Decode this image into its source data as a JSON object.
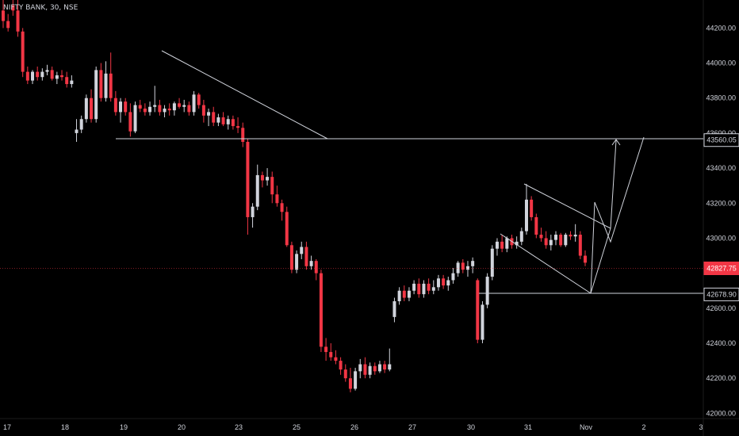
{
  "symbol_header": "NIFTY BANK, 30, NSE",
  "colors": {
    "background": "#000000",
    "up": "#d1d4dc",
    "down": "#f23645",
    "axis_text": "#d1d4dc",
    "drawing": "#d1d4dc",
    "current_price_line": "#f23645"
  },
  "chart_data": {
    "type": "candlestick",
    "title": "NIFTY BANK, 30, NSE",
    "x_tick_labels": [
      "17",
      "18",
      "19",
      "20",
      "23",
      "25",
      "26",
      "27",
      "30",
      "31",
      "Nov",
      "2",
      "3"
    ],
    "y_ticks": [
      42000,
      42200,
      42400,
      42600,
      43000,
      43200,
      43400,
      43600,
      43800,
      44000,
      44200
    ],
    "y_tick_labels": [
      "42000.00",
      "42200.00",
      "42400.00",
      "42600.00",
      "43000.00",
      "43200.00",
      "43400.00",
      "43600.00",
      "43800.00",
      "44000.00",
      "44200.00"
    ],
    "ylim": [
      41970,
      44360
    ],
    "grid": false,
    "price_labels": [
      {
        "value": 43560.05,
        "label": "43560.05",
        "style": "outline"
      },
      {
        "value": 42827.75,
        "label": "42827.75",
        "style": "current"
      },
      {
        "value": 42678.9,
        "label": "42678.90",
        "style": "outline"
      }
    ],
    "candles_ohlc": [
      [
        44300,
        44360,
        44200,
        44240
      ],
      [
        44240,
        44280,
        44180,
        44200
      ],
      [
        44330,
        44370,
        44270,
        44300
      ],
      [
        44300,
        44360,
        44150,
        44180
      ],
      [
        44180,
        44200,
        43920,
        43950
      ],
      [
        43950,
        43980,
        43880,
        43900
      ],
      [
        43900,
        43960,
        43880,
        43950
      ],
      [
        43950,
        43980,
        43900,
        43920
      ],
      [
        43920,
        43970,
        43900,
        43950
      ],
      [
        43950,
        43990,
        43930,
        43960
      ],
      [
        43960,
        43980,
        43900,
        43910
      ],
      [
        43910,
        43950,
        43880,
        43930
      ],
      [
        43930,
        43960,
        43900,
        43920
      ],
      [
        43920,
        43950,
        43860,
        43880
      ],
      [
        43880,
        43930,
        43860,
        43900
      ],
      [
        43600,
        43680,
        43550,
        43620
      ],
      [
        43620,
        43700,
        43600,
        43680
      ],
      [
        43680,
        43820,
        43660,
        43800
      ],
      [
        43800,
        43850,
        43660,
        43680
      ],
      [
        43680,
        43980,
        43660,
        43960
      ],
      [
        43960,
        44000,
        43780,
        43800
      ],
      [
        43800,
        44010,
        43780,
        43940
      ],
      [
        43940,
        44060,
        43780,
        43800
      ],
      [
        43800,
        43840,
        43700,
        43720
      ],
      [
        43720,
        43800,
        43660,
        43780
      ],
      [
        43780,
        43800,
        43700,
        43720
      ],
      [
        43720,
        43770,
        43580,
        43610
      ],
      [
        43610,
        43780,
        43600,
        43760
      ],
      [
        43760,
        43790,
        43720,
        43740
      ],
      [
        43740,
        43770,
        43700,
        43720
      ],
      [
        43720,
        43780,
        43700,
        43750
      ],
      [
        43750,
        43870,
        43720,
        43760
      ],
      [
        43760,
        43790,
        43700,
        43720
      ],
      [
        43720,
        43760,
        43690,
        43740
      ],
      [
        43740,
        43770,
        43700,
        43730
      ],
      [
        43730,
        43780,
        43700,
        43770
      ],
      [
        43770,
        43800,
        43740,
        43750
      ],
      [
        43750,
        43790,
        43720,
        43760
      ],
      [
        43760,
        43780,
        43700,
        43720
      ],
      [
        43720,
        43840,
        43700,
        43820
      ],
      [
        43820,
        43830,
        43740,
        43760
      ],
      [
        43760,
        43790,
        43660,
        43700
      ],
      [
        43700,
        43740,
        43640,
        43720
      ],
      [
        43720,
        43750,
        43640,
        43660
      ],
      [
        43660,
        43710,
        43640,
        43690
      ],
      [
        43690,
        43720,
        43640,
        43650
      ],
      [
        43650,
        43700,
        43620,
        43680
      ],
      [
        43680,
        43700,
        43620,
        43640
      ],
      [
        43640,
        43690,
        43600,
        43630
      ],
      [
        43630,
        43660,
        43520,
        43550
      ],
      [
        43550,
        43570,
        43020,
        43120
      ],
      [
        43120,
        43200,
        43060,
        43180
      ],
      [
        43180,
        43420,
        43160,
        43360
      ],
      [
        43360,
        43380,
        43290,
        43330
      ],
      [
        43330,
        43400,
        43300,
        43350
      ],
      [
        43350,
        43380,
        43200,
        43250
      ],
      [
        43250,
        43300,
        43180,
        43200
      ],
      [
        43200,
        43220,
        43100,
        43150
      ],
      [
        43150,
        43180,
        42950,
        42960
      ],
      [
        42960,
        42980,
        42800,
        42820
      ],
      [
        42820,
        42930,
        42800,
        42910
      ],
      [
        42910,
        42980,
        42880,
        42950
      ],
      [
        42950,
        42980,
        42820,
        42840
      ],
      [
        42840,
        42900,
        42820,
        42870
      ],
      [
        42870,
        42880,
        42760,
        42800
      ],
      [
        42800,
        42820,
        42350,
        42380
      ],
      [
        42380,
        42430,
        42300,
        42350
      ],
      [
        42350,
        42400,
        42300,
        42320
      ],
      [
        42320,
        42360,
        42280,
        42300
      ],
      [
        42300,
        42320,
        42220,
        42250
      ],
      [
        42250,
        42280,
        42180,
        42200
      ],
      [
        42200,
        42260,
        42120,
        42140
      ],
      [
        42140,
        42260,
        42130,
        42240
      ],
      [
        42240,
        42310,
        42200,
        42280
      ],
      [
        42280,
        42320,
        42200,
        42220
      ],
      [
        42220,
        42290,
        42200,
        42270
      ],
      [
        42270,
        42290,
        42220,
        42240
      ],
      [
        42240,
        42300,
        42230,
        42280
      ],
      [
        42280,
        42300,
        42230,
        42250
      ],
      [
        42250,
        42370,
        42240,
        42280
      ],
      [
        42550,
        42660,
        42520,
        42640
      ],
      [
        42640,
        42720,
        42620,
        42700
      ],
      [
        42700,
        42730,
        42640,
        42660
      ],
      [
        42660,
        42720,
        42640,
        42700
      ],
      [
        42700,
        42760,
        42680,
        42740
      ],
      [
        42740,
        42770,
        42660,
        42680
      ],
      [
        42680,
        42760,
        42660,
        42740
      ],
      [
        42740,
        42770,
        42680,
        42700
      ],
      [
        42700,
        42760,
        42680,
        42720
      ],
      [
        42720,
        42790,
        42700,
        42770
      ],
      [
        42770,
        42790,
        42710,
        42730
      ],
      [
        42730,
        42780,
        42700,
        42760
      ],
      [
        42760,
        42830,
        42740,
        42800
      ],
      [
        42800,
        42870,
        42780,
        42860
      ],
      [
        42860,
        42880,
        42800,
        42820
      ],
      [
        42820,
        42870,
        42780,
        42840
      ],
      [
        42840,
        42890,
        42800,
        42870
      ],
      [
        42760,
        42770,
        42400,
        42420
      ],
      [
        42420,
        42640,
        42400,
        42620
      ],
      [
        42620,
        42800,
        42600,
        42780
      ],
      [
        42780,
        42960,
        42760,
        42940
      ],
      [
        42940,
        43000,
        42900,
        42980
      ],
      [
        42980,
        43020,
        42920,
        42940
      ],
      [
        42940,
        43010,
        42920,
        43000
      ],
      [
        43000,
        43020,
        42940,
        42960
      ],
      [
        42960,
        43010,
        42940,
        42980
      ],
      [
        42980,
        43060,
        42960,
        43040
      ],
      [
        43040,
        43310,
        43020,
        43220
      ],
      [
        43220,
        43240,
        43100,
        43120
      ],
      [
        43120,
        43140,
        43000,
        43020
      ],
      [
        43020,
        43060,
        42980,
        43000
      ],
      [
        43000,
        43040,
        42940,
        42960
      ],
      [
        42960,
        43020,
        42930,
        42990
      ],
      [
        42990,
        43040,
        42960,
        43020
      ],
      [
        43020,
        43030,
        42950,
        42960
      ],
      [
        42960,
        43030,
        42950,
        43020
      ],
      [
        43020,
        43040,
        42990,
        43010
      ],
      [
        43010,
        43080,
        42980,
        43020
      ],
      [
        43020,
        43040,
        42880,
        42900
      ],
      [
        42900,
        42930,
        42840,
        42860
      ]
    ],
    "horizontal_levels": [
      43560.05,
      42827.75,
      42678.9
    ]
  }
}
